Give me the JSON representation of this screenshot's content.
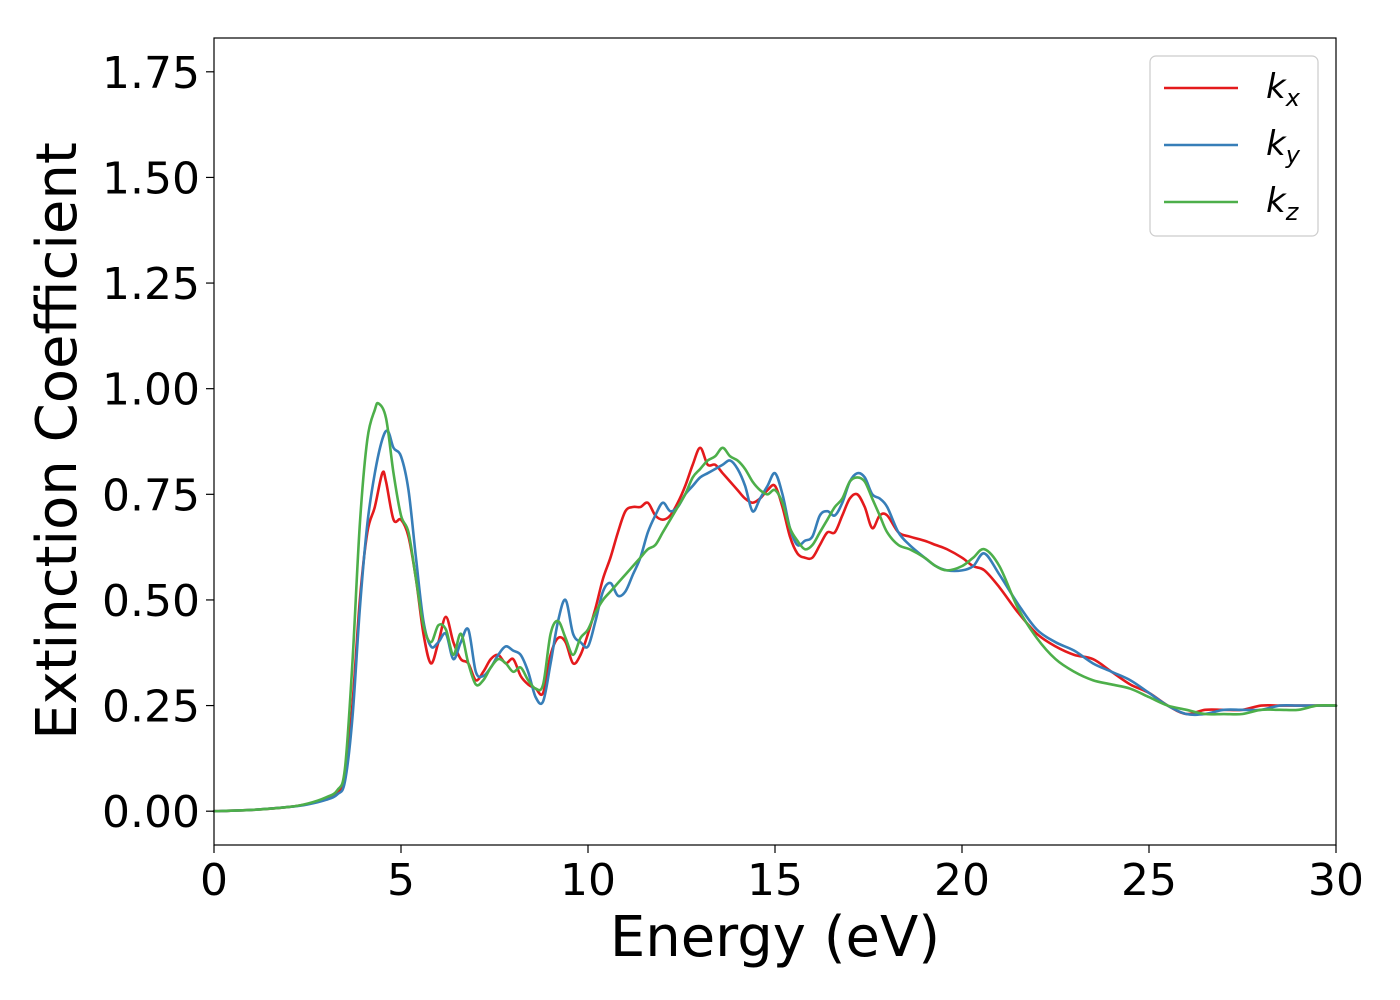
{
  "chart_data": {
    "type": "line",
    "title": "",
    "xlabel": "Energy (eV)",
    "ylabel": "Extinction Coefficient",
    "xlim": [
      0,
      30
    ],
    "ylim": [
      -0.08,
      1.83
    ],
    "xticks": [
      0,
      5,
      10,
      15,
      20,
      25,
      30
    ],
    "xtick_labels": [
      "0",
      "5",
      "10",
      "15",
      "20",
      "25",
      "30"
    ],
    "yticks": [
      0.0,
      0.25,
      0.5,
      0.75,
      1.0,
      1.25,
      1.5,
      1.75
    ],
    "ytick_labels": [
      "0.00",
      "0.25",
      "0.50",
      "0.75",
      "1.00",
      "1.25",
      "1.50",
      "1.75"
    ],
    "grid": false,
    "legend_position": "top-right",
    "series": [
      {
        "name": "k_x",
        "symbol": "k",
        "subscript": "x",
        "color": "#e41a1c",
        "x": [
          0,
          1,
          2,
          2.5,
          3,
          3.3,
          3.5,
          3.7,
          3.9,
          4.1,
          4.3,
          4.5,
          4.6,
          4.8,
          5.0,
          5.2,
          5.4,
          5.6,
          5.8,
          6.0,
          6.2,
          6.4,
          6.6,
          6.8,
          7.0,
          7.2,
          7.4,
          7.6,
          7.8,
          8.0,
          8.2,
          8.4,
          8.6,
          8.8,
          9.0,
          9.2,
          9.4,
          9.6,
          9.8,
          10.0,
          10.2,
          10.4,
          10.6,
          10.8,
          11.0,
          11.2,
          11.4,
          11.6,
          11.8,
          12.0,
          12.2,
          12.4,
          12.6,
          12.8,
          13.0,
          13.2,
          13.4,
          13.6,
          13.8,
          14.0,
          14.2,
          14.4,
          14.6,
          14.8,
          15.0,
          15.2,
          15.4,
          15.6,
          15.8,
          16.0,
          16.2,
          16.4,
          16.6,
          16.8,
          17.0,
          17.2,
          17.4,
          17.6,
          17.8,
          18.0,
          18.3,
          18.6,
          19.0,
          19.3,
          19.6,
          20.0,
          20.3,
          20.6,
          21.0,
          21.5,
          22.0,
          22.5,
          23.0,
          23.5,
          24.0,
          24.5,
          25.0,
          25.5,
          26.0,
          26.5,
          27.0,
          27.5,
          28.0,
          28.5,
          29.0,
          29.5,
          30.0
        ],
        "y": [
          0,
          0.003,
          0.01,
          0.017,
          0.03,
          0.045,
          0.08,
          0.25,
          0.5,
          0.66,
          0.72,
          0.8,
          0.78,
          0.69,
          0.69,
          0.65,
          0.55,
          0.42,
          0.35,
          0.4,
          0.46,
          0.4,
          0.36,
          0.35,
          0.31,
          0.33,
          0.36,
          0.37,
          0.35,
          0.36,
          0.32,
          0.3,
          0.29,
          0.28,
          0.37,
          0.41,
          0.4,
          0.35,
          0.37,
          0.42,
          0.48,
          0.55,
          0.6,
          0.66,
          0.71,
          0.72,
          0.72,
          0.73,
          0.7,
          0.69,
          0.7,
          0.73,
          0.77,
          0.82,
          0.86,
          0.82,
          0.82,
          0.8,
          0.78,
          0.76,
          0.74,
          0.73,
          0.74,
          0.76,
          0.77,
          0.72,
          0.65,
          0.61,
          0.6,
          0.6,
          0.63,
          0.66,
          0.66,
          0.7,
          0.74,
          0.75,
          0.72,
          0.67,
          0.7,
          0.7,
          0.66,
          0.65,
          0.64,
          0.63,
          0.62,
          0.6,
          0.58,
          0.57,
          0.53,
          0.47,
          0.42,
          0.39,
          0.37,
          0.36,
          0.33,
          0.3,
          0.28,
          0.25,
          0.23,
          0.24,
          0.24,
          0.24,
          0.25,
          0.25,
          0.25,
          0.25,
          0.25
        ]
      },
      {
        "name": "k_y",
        "symbol": "k",
        "subscript": "y",
        "color": "#377eb8",
        "x": [
          0,
          1,
          2,
          2.5,
          3,
          3.3,
          3.5,
          3.7,
          3.9,
          4.1,
          4.3,
          4.5,
          4.65,
          4.8,
          5.0,
          5.2,
          5.4,
          5.6,
          5.8,
          6.0,
          6.2,
          6.4,
          6.6,
          6.8,
          7.0,
          7.2,
          7.4,
          7.6,
          7.8,
          8.0,
          8.2,
          8.4,
          8.6,
          8.8,
          9.0,
          9.2,
          9.4,
          9.6,
          9.8,
          10.0,
          10.2,
          10.4,
          10.6,
          10.8,
          11.0,
          11.2,
          11.4,
          11.6,
          11.8,
          12.0,
          12.2,
          12.4,
          12.6,
          12.8,
          13.0,
          13.2,
          13.4,
          13.6,
          13.8,
          14.0,
          14.2,
          14.4,
          14.6,
          14.8,
          15.0,
          15.2,
          15.4,
          15.6,
          15.8,
          16.0,
          16.2,
          16.4,
          16.6,
          16.8,
          17.0,
          17.2,
          17.4,
          17.6,
          17.8,
          18.0,
          18.3,
          18.6,
          19.0,
          19.3,
          19.6,
          20.0,
          20.3,
          20.6,
          21.0,
          21.5,
          22.0,
          22.5,
          23.0,
          23.5,
          24.0,
          24.5,
          25.0,
          25.5,
          26.0,
          26.5,
          27.0,
          27.5,
          28.0,
          28.5,
          29.0,
          29.5,
          30.0
        ],
        "y": [
          0,
          0.003,
          0.01,
          0.016,
          0.027,
          0.04,
          0.07,
          0.22,
          0.48,
          0.68,
          0.8,
          0.88,
          0.9,
          0.86,
          0.84,
          0.76,
          0.6,
          0.45,
          0.39,
          0.4,
          0.42,
          0.36,
          0.4,
          0.43,
          0.33,
          0.32,
          0.34,
          0.37,
          0.39,
          0.38,
          0.37,
          0.33,
          0.27,
          0.26,
          0.35,
          0.45,
          0.5,
          0.42,
          0.4,
          0.39,
          0.45,
          0.52,
          0.54,
          0.51,
          0.52,
          0.56,
          0.6,
          0.66,
          0.7,
          0.73,
          0.71,
          0.72,
          0.75,
          0.77,
          0.79,
          0.8,
          0.81,
          0.82,
          0.83,
          0.81,
          0.77,
          0.71,
          0.74,
          0.77,
          0.8,
          0.75,
          0.67,
          0.63,
          0.64,
          0.65,
          0.7,
          0.71,
          0.7,
          0.73,
          0.78,
          0.8,
          0.79,
          0.75,
          0.74,
          0.72,
          0.66,
          0.63,
          0.6,
          0.58,
          0.57,
          0.57,
          0.58,
          0.61,
          0.56,
          0.49,
          0.43,
          0.4,
          0.38,
          0.35,
          0.33,
          0.31,
          0.28,
          0.25,
          0.23,
          0.23,
          0.24,
          0.24,
          0.24,
          0.25,
          0.25,
          0.25,
          0.25
        ]
      },
      {
        "name": "k_z",
        "symbol": "k",
        "subscript": "z",
        "color": "#4daf4a",
        "x": [
          0,
          1,
          2,
          2.5,
          3,
          3.3,
          3.5,
          3.7,
          3.9,
          4.1,
          4.3,
          4.4,
          4.6,
          4.8,
          5.0,
          5.2,
          5.4,
          5.6,
          5.8,
          6.0,
          6.2,
          6.4,
          6.6,
          6.8,
          7.0,
          7.2,
          7.4,
          7.6,
          7.8,
          8.0,
          8.2,
          8.4,
          8.6,
          8.8,
          9.0,
          9.2,
          9.4,
          9.6,
          9.8,
          10.0,
          10.2,
          10.4,
          10.6,
          10.8,
          11.0,
          11.2,
          11.4,
          11.6,
          11.8,
          12.0,
          12.2,
          12.4,
          12.6,
          12.8,
          13.0,
          13.2,
          13.4,
          13.6,
          13.8,
          14.0,
          14.2,
          14.4,
          14.6,
          14.8,
          15.0,
          15.2,
          15.4,
          15.6,
          15.8,
          16.0,
          16.2,
          16.4,
          16.6,
          16.8,
          17.0,
          17.2,
          17.4,
          17.6,
          17.8,
          18.0,
          18.3,
          18.6,
          19.0,
          19.3,
          19.6,
          20.0,
          20.3,
          20.6,
          21.0,
          21.5,
          22.0,
          22.5,
          23.0,
          23.5,
          24.0,
          24.5,
          25.0,
          25.5,
          26.0,
          26.5,
          27.0,
          27.5,
          28.0,
          28.5,
          29.0,
          29.5,
          30.0
        ],
        "y": [
          0,
          0.003,
          0.01,
          0.018,
          0.033,
          0.05,
          0.1,
          0.35,
          0.68,
          0.88,
          0.95,
          0.965,
          0.93,
          0.8,
          0.7,
          0.66,
          0.55,
          0.44,
          0.4,
          0.44,
          0.43,
          0.37,
          0.42,
          0.35,
          0.3,
          0.31,
          0.34,
          0.36,
          0.35,
          0.33,
          0.34,
          0.31,
          0.29,
          0.3,
          0.42,
          0.45,
          0.41,
          0.37,
          0.41,
          0.43,
          0.47,
          0.5,
          0.52,
          0.54,
          0.56,
          0.58,
          0.6,
          0.62,
          0.63,
          0.66,
          0.69,
          0.72,
          0.75,
          0.79,
          0.81,
          0.83,
          0.84,
          0.86,
          0.84,
          0.83,
          0.81,
          0.78,
          0.76,
          0.75,
          0.76,
          0.73,
          0.67,
          0.64,
          0.62,
          0.63,
          0.66,
          0.69,
          0.72,
          0.74,
          0.78,
          0.79,
          0.78,
          0.74,
          0.7,
          0.66,
          0.63,
          0.62,
          0.6,
          0.58,
          0.57,
          0.58,
          0.6,
          0.62,
          0.58,
          0.48,
          0.41,
          0.36,
          0.33,
          0.31,
          0.3,
          0.29,
          0.27,
          0.25,
          0.24,
          0.23,
          0.23,
          0.23,
          0.24,
          0.24,
          0.24,
          0.25,
          0.25
        ]
      }
    ]
  }
}
